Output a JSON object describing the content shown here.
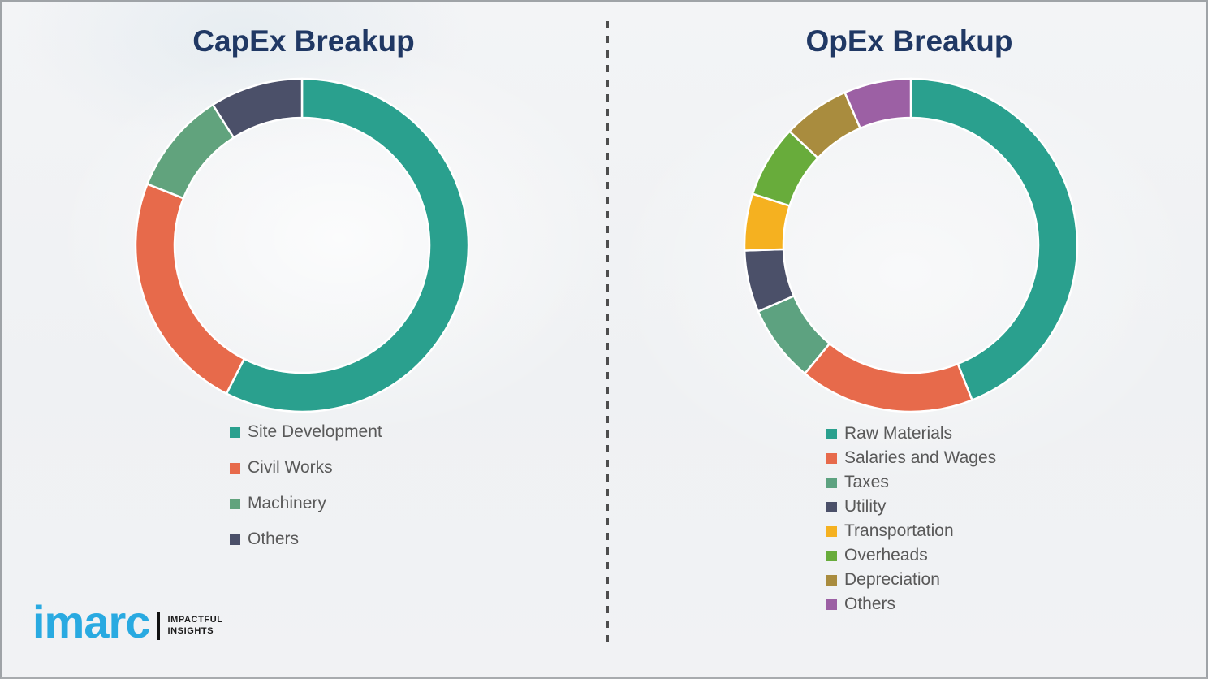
{
  "page": {
    "background_color": "#f0f1f3",
    "border_color": "#9fa3a7",
    "divider_color": "#4d4d4d"
  },
  "chart_data": [
    {
      "type": "pie",
      "subtype": "donut",
      "title": "CapEx Breakup",
      "title_color": "#203864",
      "start_angle_deg": 0,
      "direction": "clockwise",
      "legend_position": "bottom-left",
      "segments": [
        {
          "label": "Site Development",
          "value_pct": 57.5,
          "color": "#2aa08e"
        },
        {
          "label": "Civil Works",
          "value_pct": 23.5,
          "color": "#e76a4b"
        },
        {
          "label": "Machinery",
          "value_pct": 10.0,
          "color": "#61a37d"
        },
        {
          "label": "Others",
          "value_pct": 9.0,
          "color": "#4b5069"
        }
      ]
    },
    {
      "type": "pie",
      "subtype": "donut",
      "title": "OpEx Breakup",
      "title_color": "#203864",
      "start_angle_deg": 0,
      "direction": "clockwise",
      "legend_position": "bottom-left",
      "segments": [
        {
          "label": "Raw Materials",
          "value_pct": 44.0,
          "color": "#2aa08e"
        },
        {
          "label": "Salaries and Wages",
          "value_pct": 17.0,
          "color": "#e76a4b"
        },
        {
          "label": "Taxes",
          "value_pct": 7.5,
          "color": "#5da280"
        },
        {
          "label": "Utility",
          "value_pct": 6.0,
          "color": "#4b5069"
        },
        {
          "label": "Transportation",
          "value_pct": 5.5,
          "color": "#f5b120"
        },
        {
          "label": "Overheads",
          "value_pct": 7.0,
          "color": "#68ac3b"
        },
        {
          "label": "Depreciation",
          "value_pct": 6.5,
          "color": "#a98c3e"
        },
        {
          "label": "Others",
          "value_pct": 6.5,
          "color": "#9c60a4"
        }
      ]
    }
  ],
  "branding": {
    "logo_text": "imarc",
    "logo_color": "#29aae1",
    "tagline_line1": "IMPACTFUL",
    "tagline_line2": "INSIGHTS"
  }
}
